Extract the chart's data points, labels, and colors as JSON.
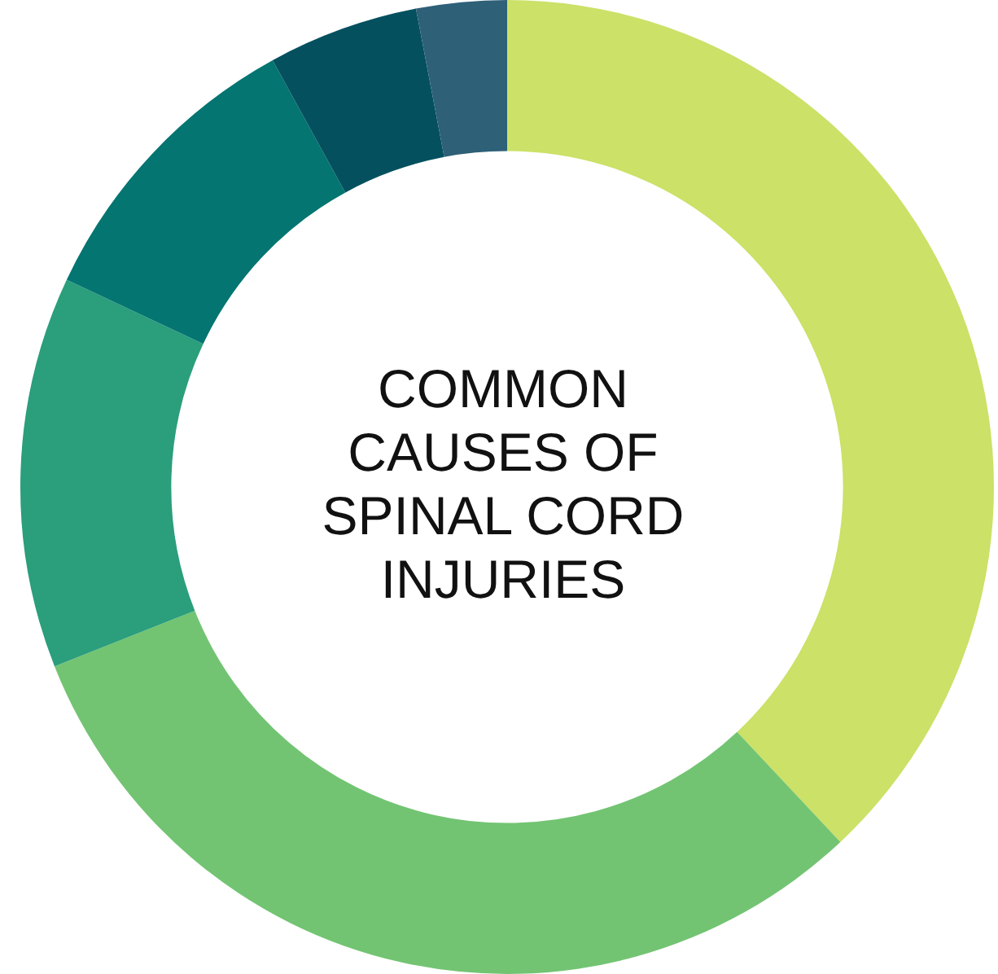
{
  "chart_data": {
    "type": "donut",
    "title": "COMMON CAUSES OF SPINAL CORD INJURIES",
    "categories": [
      null,
      null,
      null,
      null,
      null,
      null
    ],
    "values": [
      38,
      31,
      13,
      10,
      5,
      3
    ],
    "colors": [
      "#cbe167",
      "#72c472",
      "#2b9e7c",
      "#047571",
      "#04505e",
      "#2e6078"
    ],
    "legend": false
  }
}
